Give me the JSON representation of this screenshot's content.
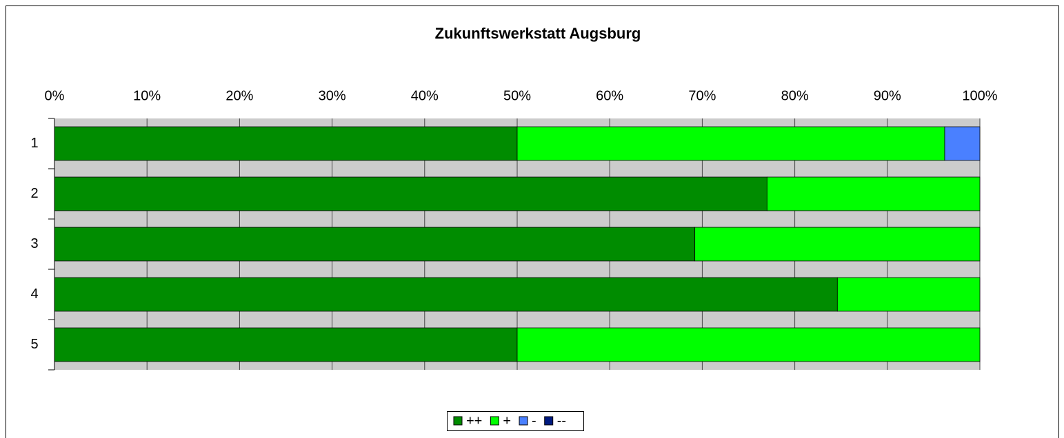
{
  "chart_data": {
    "type": "bar",
    "orientation": "horizontal",
    "stacked": true,
    "title": "Zukunftswerkstatt Augsburg",
    "categories": [
      "1",
      "2",
      "3",
      "4",
      "5"
    ],
    "series": [
      {
        "name": "++",
        "color": "#008c00",
        "values": [
          50,
          77,
          69.2,
          84.6,
          50
        ]
      },
      {
        "name": "+",
        "color": "#00ff00",
        "values": [
          46.2,
          23,
          30.8,
          15.4,
          50
        ]
      },
      {
        "name": "-",
        "color": "#4a80ff",
        "values": [
          3.8,
          0,
          0,
          0,
          0
        ]
      },
      {
        "name": "--",
        "color": "#001a80",
        "values": [
          0,
          0,
          0,
          0,
          0
        ]
      }
    ],
    "xlim": [
      0,
      100
    ],
    "xticks": [
      {
        "value": 0,
        "label": "0%"
      },
      {
        "value": 10,
        "label": "10%"
      },
      {
        "value": 20,
        "label": "20%"
      },
      {
        "value": 30,
        "label": "30%"
      },
      {
        "value": 40,
        "label": "40%"
      },
      {
        "value": 50,
        "label": "50%"
      },
      {
        "value": 60,
        "label": "60%"
      },
      {
        "value": 70,
        "label": "70%"
      },
      {
        "value": 80,
        "label": "80%"
      },
      {
        "value": 90,
        "label": "90%"
      },
      {
        "value": 100,
        "label": "100%"
      }
    ],
    "grid": true,
    "legend": "bottom"
  }
}
